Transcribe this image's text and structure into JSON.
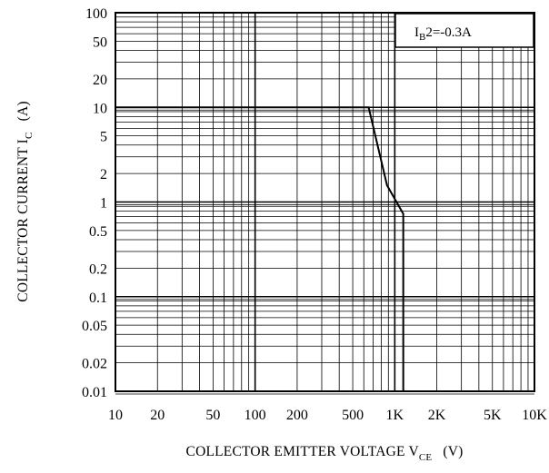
{
  "chart_data": {
    "type": "line",
    "title": "",
    "xlabel": {
      "main": "COLLECTOR EMITTER VOLTAGE V",
      "sub": "CE",
      "unit": "(V)"
    },
    "ylabel": {
      "main": "COLLECTOR CURRENT I",
      "sub": "C",
      "unit": "(A)"
    },
    "x_scale": "log",
    "y_scale": "log",
    "xlim": [
      10,
      10000
    ],
    "ylim": [
      0.01,
      100
    ],
    "x_ticks": [
      {
        "value": 10,
        "label": "10"
      },
      {
        "value": 20,
        "label": "20"
      },
      {
        "value": 50,
        "label": "50"
      },
      {
        "value": 100,
        "label": "100"
      },
      {
        "value": 200,
        "label": "200"
      },
      {
        "value": 500,
        "label": "500"
      },
      {
        "value": 1000,
        "label": "1K"
      },
      {
        "value": 2000,
        "label": "2K"
      },
      {
        "value": 5000,
        "label": "5K"
      },
      {
        "value": 10000,
        "label": "10K"
      }
    ],
    "y_ticks": [
      {
        "value": 100,
        "label": "100"
      },
      {
        "value": 50,
        "label": "50"
      },
      {
        "value": 20,
        "label": "20"
      },
      {
        "value": 10,
        "label": "10"
      },
      {
        "value": 5,
        "label": "5"
      },
      {
        "value": 2,
        "label": "2"
      },
      {
        "value": 1,
        "label": "1"
      },
      {
        "value": 0.5,
        "label": "0.5"
      },
      {
        "value": 0.2,
        "label": "0.2"
      },
      {
        "value": 0.1,
        "label": "0.1"
      },
      {
        "value": 0.05,
        "label": "0.05"
      },
      {
        "value": 0.02,
        "label": "0.02"
      },
      {
        "value": 0.01,
        "label": "0.01"
      }
    ],
    "grid": true,
    "legend": {
      "position": "top-right",
      "prefix": "I",
      "sub": "B",
      "suffix": "2=-0.3A"
    },
    "series": [
      {
        "x": [
          10,
          650,
          880,
          1150,
          1150
        ],
        "y": [
          10,
          10,
          1.5,
          0.75,
          0.01
        ]
      }
    ],
    "colors": {
      "line": "#000000",
      "grid": "#000000",
      "background": "#ffffff"
    }
  }
}
